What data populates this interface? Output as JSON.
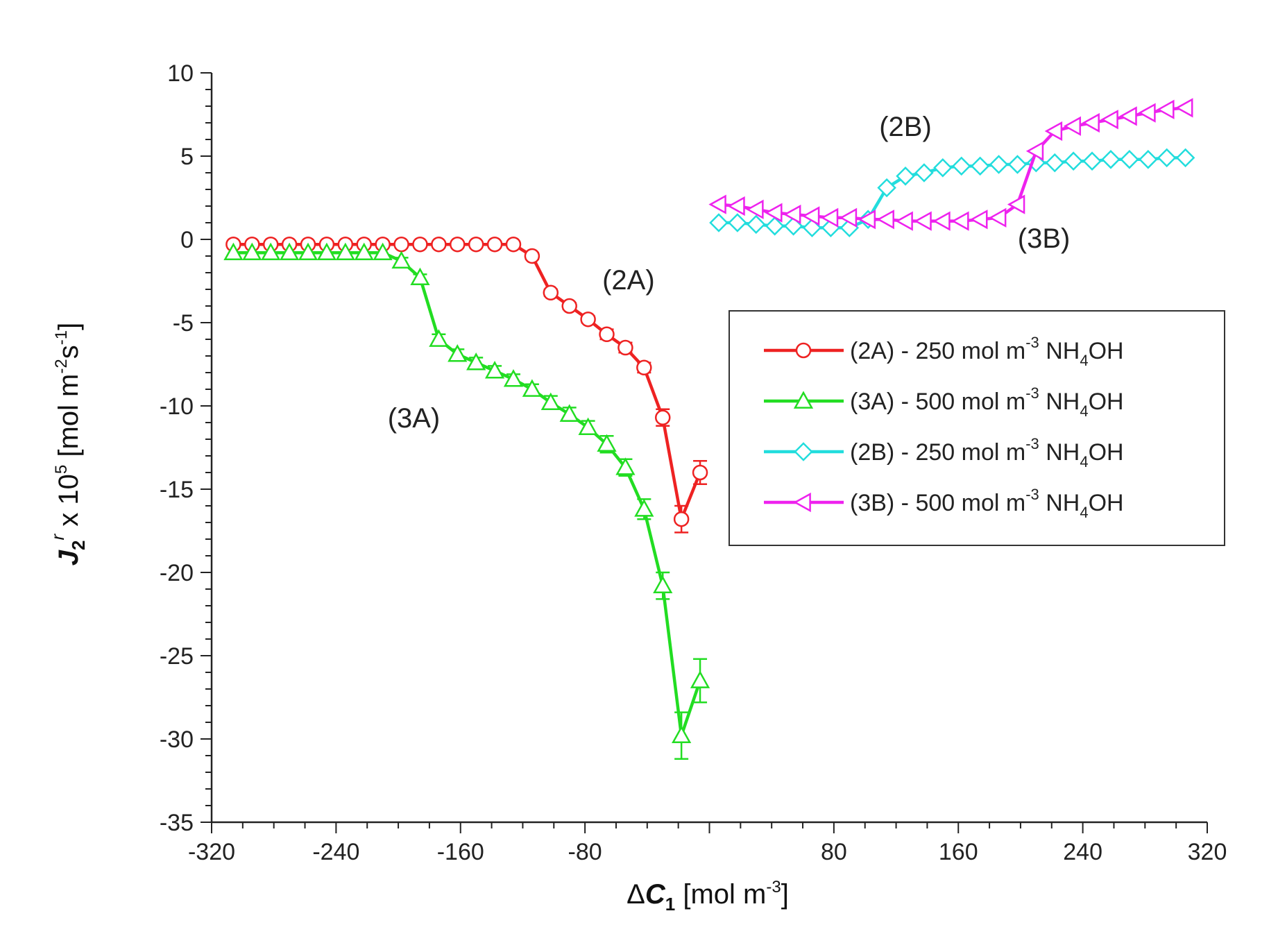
{
  "chart_data": {
    "type": "line",
    "x_axis": {
      "label_prefix": "Δ",
      "label_var": "C",
      "label_sub": "1",
      "label_unit_open": " [mol m",
      "label_unit_sup": "-3",
      "label_unit_close": "]",
      "range": [
        -320,
        320
      ],
      "ticks": [
        -320,
        -240,
        -160,
        -80,
        0,
        80,
        160,
        240,
        320
      ],
      "tick_labels": [
        "-320",
        "-240",
        "-160",
        "-80",
        "",
        "80",
        "160",
        "240",
        "320"
      ],
      "minor_step": 20
    },
    "y_axis": {
      "label_var": "J",
      "label_sub": "2",
      "label_sup": "r",
      "label_mult": " x 10",
      "label_exp": "5",
      "label_unit_open": " [mol m",
      "label_unit_sup1": "-2",
      "label_unit_mid": "s",
      "label_unit_sup2": "-1",
      "label_unit_close": "]",
      "range": [
        -35,
        10
      ],
      "ticks": [
        -35,
        -30,
        -25,
        -20,
        -15,
        -10,
        -5,
        0,
        5,
        10
      ],
      "tick_labels": [
        "-35",
        "-30",
        "-25",
        "-20",
        "-15",
        "-10",
        "-5",
        "0",
        "5",
        "10"
      ],
      "minor_step": 1
    },
    "grid": false,
    "legend_position": "right-middle",
    "series": [
      {
        "name": "(2A)",
        "legend": {
          "pre": "(2A) - 250 mol m",
          "sup": "-3",
          "mid": " NH",
          "sub": "4",
          "post": "OH"
        },
        "color": "#ee2222",
        "marker": "circle",
        "points": [
          [
            -306,
            -0.3
          ],
          [
            -294,
            -0.3
          ],
          [
            -282,
            -0.3
          ],
          [
            -270,
            -0.3
          ],
          [
            -258,
            -0.3
          ],
          [
            -246,
            -0.3
          ],
          [
            -234,
            -0.3
          ],
          [
            -222,
            -0.3
          ],
          [
            -210,
            -0.3
          ],
          [
            -198,
            -0.3
          ],
          [
            -186,
            -0.3
          ],
          [
            -174,
            -0.3
          ],
          [
            -162,
            -0.3
          ],
          [
            -150,
            -0.3
          ],
          [
            -138,
            -0.3
          ],
          [
            -126,
            -0.3
          ],
          [
            -114,
            -1.0
          ],
          [
            -102,
            -3.2
          ],
          [
            -90,
            -4.0
          ],
          [
            -78,
            -4.8
          ],
          [
            -66,
            -5.7
          ],
          [
            -54,
            -6.5
          ],
          [
            -42,
            -7.7
          ],
          [
            -30,
            -10.7
          ],
          [
            -18,
            -16.8
          ],
          [
            -6,
            -14.0
          ]
        ],
        "errors": [
          0,
          0,
          0,
          0,
          0,
          0,
          0,
          0,
          0,
          0,
          0,
          0,
          0,
          0,
          0,
          0,
          0.2,
          0.2,
          0.2,
          0.2,
          0.3,
          0.3,
          0.3,
          0.5,
          0.8,
          0.7
        ]
      },
      {
        "name": "(3A)",
        "legend": {
          "pre": "(3A) - 500 mol m",
          "sup": "-3",
          "mid": " NH",
          "sub": "4",
          "post": "OH"
        },
        "color": "#22dd22",
        "marker": "triangle-up",
        "points": [
          [
            -306,
            -0.8
          ],
          [
            -294,
            -0.8
          ],
          [
            -282,
            -0.8
          ],
          [
            -270,
            -0.8
          ],
          [
            -258,
            -0.8
          ],
          [
            -246,
            -0.8
          ],
          [
            -234,
            -0.8
          ],
          [
            -222,
            -0.8
          ],
          [
            -210,
            -0.8
          ],
          [
            -198,
            -1.3
          ],
          [
            -186,
            -2.3
          ],
          [
            -174,
            -6.0
          ],
          [
            -162,
            -6.9
          ],
          [
            -150,
            -7.4
          ],
          [
            -138,
            -7.9
          ],
          [
            -126,
            -8.4
          ],
          [
            -114,
            -9.0
          ],
          [
            -102,
            -9.8
          ],
          [
            -90,
            -10.5
          ],
          [
            -78,
            -11.3
          ],
          [
            -66,
            -12.3
          ],
          [
            -54,
            -13.7
          ],
          [
            -42,
            -16.2
          ],
          [
            -30,
            -20.8
          ],
          [
            -18,
            -29.8
          ],
          [
            -6,
            -26.5
          ]
        ],
        "errors": [
          0,
          0,
          0,
          0,
          0,
          0,
          0,
          0,
          0,
          0.2,
          0.2,
          0.3,
          0.3,
          0.3,
          0.3,
          0.3,
          0.3,
          0.4,
          0.4,
          0.4,
          0.5,
          0.5,
          0.6,
          0.8,
          1.4,
          1.3
        ]
      },
      {
        "name": "(2B)",
        "legend": {
          "pre": "(2B) - 250 mol m",
          "sup": "-3",
          "mid": " NH",
          "sub": "4",
          "post": "OH"
        },
        "color": "#22dddd",
        "marker": "diamond",
        "points": [
          [
            6,
            1.0
          ],
          [
            18,
            1.0
          ],
          [
            30,
            0.9
          ],
          [
            42,
            0.8
          ],
          [
            54,
            0.8
          ],
          [
            66,
            0.7
          ],
          [
            78,
            0.7
          ],
          [
            90,
            0.7
          ],
          [
            102,
            1.2
          ],
          [
            114,
            3.1
          ],
          [
            126,
            3.8
          ],
          [
            138,
            4.0
          ],
          [
            150,
            4.3
          ],
          [
            162,
            4.4
          ],
          [
            174,
            4.4
          ],
          [
            186,
            4.5
          ],
          [
            198,
            4.5
          ],
          [
            210,
            4.6
          ],
          [
            222,
            4.6
          ],
          [
            234,
            4.7
          ],
          [
            246,
            4.7
          ],
          [
            258,
            4.8
          ],
          [
            270,
            4.8
          ],
          [
            282,
            4.8
          ],
          [
            294,
            4.9
          ],
          [
            306,
            4.9
          ]
        ],
        "errors": []
      },
      {
        "name": "(3B)",
        "legend": {
          "pre": "(3B) - 500 mol m",
          "sup": "-3",
          "mid": " NH",
          "sub": "4",
          "post": "OH"
        },
        "color": "#ee22ee",
        "marker": "triangle-left",
        "points": [
          [
            6,
            2.1
          ],
          [
            18,
            2.0
          ],
          [
            30,
            1.8
          ],
          [
            42,
            1.6
          ],
          [
            54,
            1.5
          ],
          [
            66,
            1.4
          ],
          [
            78,
            1.3
          ],
          [
            90,
            1.3
          ],
          [
            102,
            1.2
          ],
          [
            114,
            1.2
          ],
          [
            126,
            1.1
          ],
          [
            138,
            1.1
          ],
          [
            150,
            1.1
          ],
          [
            162,
            1.1
          ],
          [
            174,
            1.2
          ],
          [
            186,
            1.3
          ],
          [
            198,
            2.1
          ],
          [
            210,
            5.3
          ],
          [
            222,
            6.5
          ],
          [
            234,
            6.8
          ],
          [
            246,
            7.0
          ],
          [
            258,
            7.2
          ],
          [
            270,
            7.4
          ],
          [
            282,
            7.6
          ],
          [
            294,
            7.8
          ],
          [
            306,
            7.9
          ]
        ],
        "errors": []
      }
    ],
    "annotations": [
      {
        "text": "(2A)",
        "x": -52,
        "y": -3
      },
      {
        "text": "(3A)",
        "x": -190,
        "y": -11.3
      },
      {
        "text": "(2B)",
        "x": 126,
        "y": 6.2
      },
      {
        "text": "(3B)",
        "x": 215,
        "y": -0.5
      }
    ]
  }
}
